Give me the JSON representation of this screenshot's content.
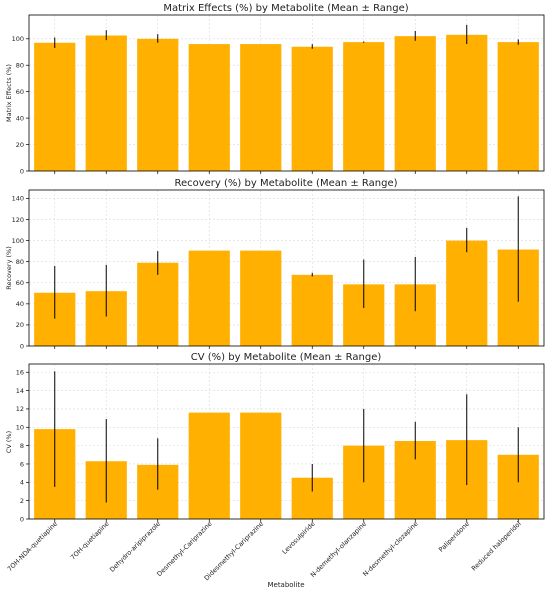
{
  "colors": {
    "bar": "#ffb000",
    "error": "#000000",
    "grid": "#d9d9d9",
    "axis": "#000000"
  },
  "categories": [
    "7OH-NDA-quetiapine",
    "7OH-quetiapine",
    "Dehydro-aripiprazole",
    "Desmethyl-Cariprazine",
    "Didesmethyl-Cariprazine",
    "Levosulpiride",
    "N-demethyl-olanzapine",
    "N-desmethyl-clozapine",
    "Paliperidone",
    "Reduced haloperidol"
  ],
  "xlabel": "Metabolite",
  "chart_data": [
    {
      "type": "bar",
      "title": "Matrix Effects (%) by Metabolite (Mean ± Range)",
      "ylabel": "Matrix Effects (%)",
      "ylim": [
        0,
        118
      ],
      "yticks": [
        0,
        20,
        40,
        60,
        80,
        100
      ],
      "grid": true,
      "values": [
        97,
        102.5,
        100,
        96,
        96,
        94,
        97.5,
        102,
        103,
        97.5
      ],
      "err_low": [
        93,
        99,
        97,
        96,
        96,
        92.5,
        97,
        98.5,
        96,
        95.5
      ],
      "err_high": [
        101,
        106.5,
        103.5,
        96,
        96,
        96,
        98,
        106,
        110.5,
        99.5
      ]
    },
    {
      "type": "bar",
      "title": "Recovery (%) by Metabolite (Mean ± Range)",
      "ylabel": "Recovery (%)",
      "ylim": [
        0,
        148
      ],
      "yticks": [
        0,
        20,
        40,
        60,
        80,
        100,
        120,
        140
      ],
      "grid": true,
      "values": [
        50.5,
        52,
        79,
        90.5,
        90.5,
        67.5,
        58.5,
        58.5,
        100,
        91.5
      ],
      "err_low": [
        26,
        28,
        67.5,
        90.5,
        90.5,
        66,
        36,
        33,
        89,
        42
      ],
      "err_high": [
        76,
        77,
        90,
        90.5,
        90.5,
        69.5,
        82,
        84.5,
        112,
        142
      ]
    },
    {
      "type": "bar",
      "title": "CV (%) by Metabolite (Mean ± Range)",
      "ylabel": "CV (%)",
      "ylim": [
        0,
        16.9
      ],
      "yticks": [
        0,
        2,
        4,
        6,
        8,
        10,
        12,
        14,
        16
      ],
      "grid": true,
      "values": [
        9.8,
        6.3,
        5.9,
        11.6,
        11.6,
        4.5,
        8,
        8.5,
        8.6,
        7
      ],
      "err_low": [
        3.5,
        1.8,
        3.2,
        11.6,
        11.6,
        3,
        4,
        6.5,
        3.7,
        4
      ],
      "err_high": [
        16.1,
        10.9,
        8.8,
        11.6,
        11.6,
        6,
        12,
        10.6,
        13.6,
        10
      ]
    }
  ]
}
